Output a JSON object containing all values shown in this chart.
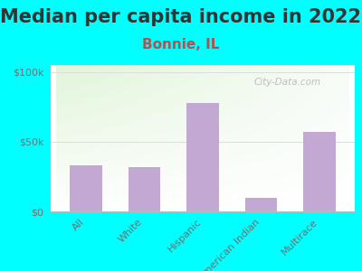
{
  "title": "Median per capita income in 2022",
  "subtitle": "Bonnie, IL",
  "categories": [
    "All",
    "White",
    "Hispanic",
    "American Indian",
    "Multirace"
  ],
  "values": [
    33000,
    32000,
    78000,
    10000,
    57000
  ],
  "bar_color": "#c4a8d4",
  "background_outer": "#00FFFF",
  "yticks": [
    0,
    50000,
    100000
  ],
  "ytick_labels": [
    "$0",
    "$50k",
    "$100k"
  ],
  "ylim": [
    0,
    105000
  ],
  "watermark": "City-Data.com",
  "title_fontsize": 15,
  "subtitle_fontsize": 11,
  "subtitle_color": "#aa5555",
  "tick_label_color": "#707070",
  "tick_fontsize": 8,
  "title_color": "#333333",
  "grid_color": "#dddddd",
  "spine_color": "#bbbbbb"
}
